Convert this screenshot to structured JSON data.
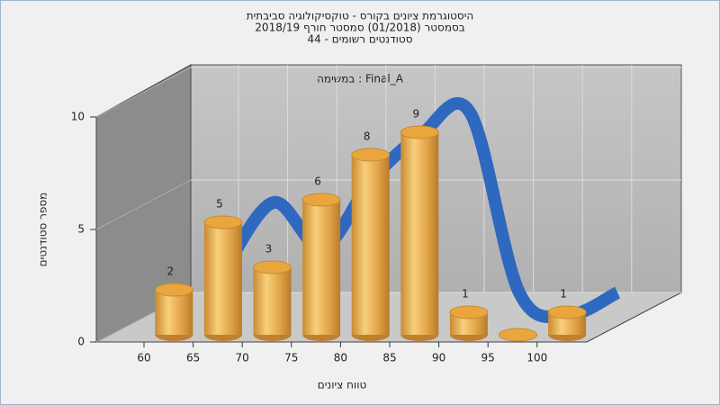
{
  "chart_data": {
    "type": "bar3d",
    "title": [
      "היסטוגרמת ציונים בקורס - טוקסיקולוגיה סביבתית",
      "בסמסטר  (01/2018)  סמסטר חורף 2018/19",
      "סטודנטים רשומים - 44"
    ],
    "annotation": "במשימה : Final_A",
    "x_label": "טווח ציונים",
    "y_label": "מספר סטודנטים",
    "categories": [
      "60",
      "65",
      "70",
      "75",
      "80",
      "85",
      "90",
      "95",
      "100"
    ],
    "values": [
      2,
      5,
      3,
      6,
      8,
      9,
      1,
      0,
      1
    ],
    "value_labels": [
      "2",
      "5",
      "3",
      "6",
      "8",
      "9",
      "1",
      null,
      "1"
    ],
    "color": "#e8a848",
    "line_color": "#2f68bf",
    "ylim": [
      0,
      10
    ],
    "yticks": [
      0,
      5,
      10
    ],
    "grid": true
  }
}
